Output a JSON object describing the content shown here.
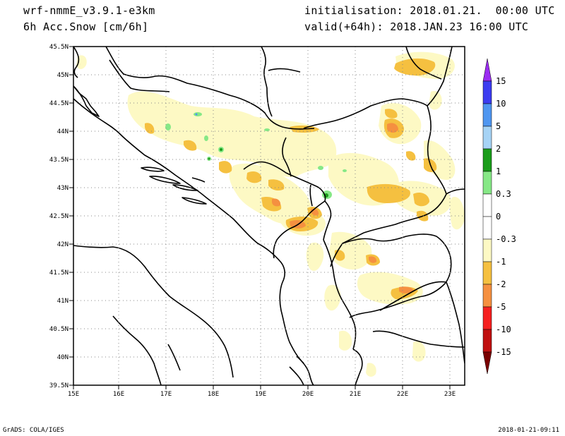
{
  "header": {
    "model": "wrf-nmmE_v3.9.1-e3km",
    "field": "6h Acc.Snow [cm/6h]",
    "init": "initialisation: 2018.01.21.  00:00 UTC",
    "valid": "valid(+64h): 2018.JAN.23 16:00 UTC"
  },
  "footer": {
    "left": "GrADS: COLA/IGES",
    "right": "2018-01-21-09:11"
  },
  "map": {
    "lon_ticks": [
      "15E",
      "16E",
      "17E",
      "18E",
      "19E",
      "20E",
      "21E",
      "22E",
      "23E"
    ],
    "lat_ticks": [
      "45.5N",
      "45N",
      "44.5N",
      "44N",
      "43.5N",
      "43N",
      "42.5N",
      "42N",
      "41.5N",
      "41N",
      "40.5N",
      "40N",
      "39.5N"
    ],
    "extent": {
      "lon": [
        15,
        23.3
      ],
      "lat": [
        39.5,
        45.5
      ]
    },
    "gridlines": true
  },
  "colorbar": {
    "labels": [
      "15",
      "10",
      "5",
      "2",
      "1",
      "0.3",
      "0",
      "-0.3",
      "-1",
      "-2",
      "-5",
      "-10",
      "-15"
    ],
    "colors": [
      "#9b2cf2",
      "#3c3cf0",
      "#4f96f0",
      "#a6d3f5",
      "#1a9c1a",
      "#86e886",
      "#ffffff",
      "#ffffff",
      "#fdf9c4",
      "#f5c040",
      "#f59040",
      "#f52020",
      "#c01010",
      "#7a0000"
    ]
  },
  "colors": {
    "snow_light": "#fdf9c4",
    "snow_mid": "#f5c040",
    "snow_heavy": "#f59040",
    "green_light": "#86e886",
    "green_dark": "#1a9c1a",
    "blue_light": "#a6d3f5",
    "border": "#000000"
  }
}
